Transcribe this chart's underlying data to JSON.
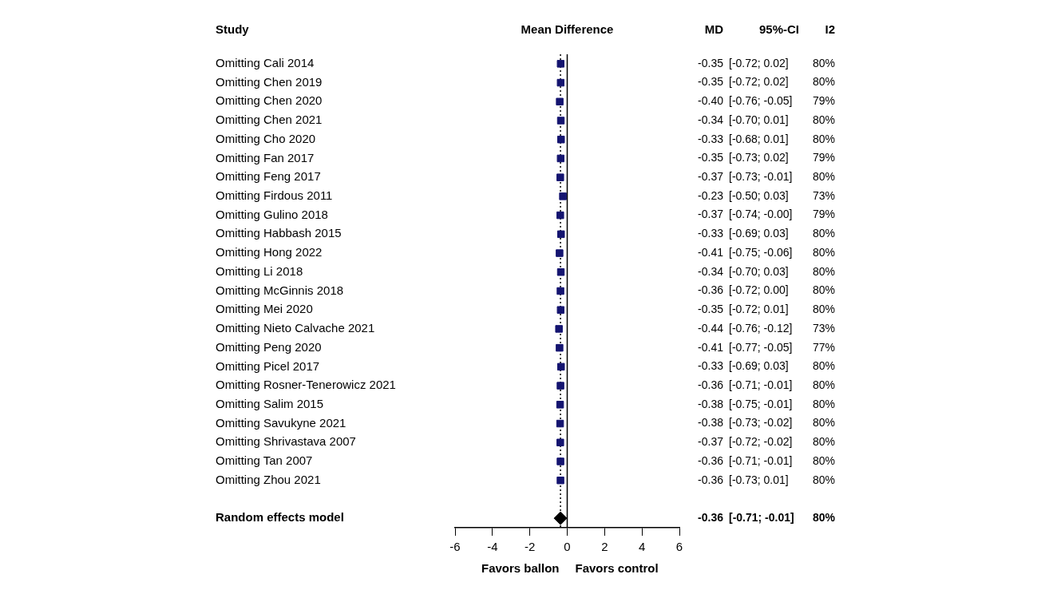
{
  "chart_data": {
    "type": "scatter",
    "orientation": "horizontal",
    "title": "Mean Difference",
    "categories": [
      "Omitting Cali 2014",
      "Omitting Chen 2019",
      "Omitting Chen 2020",
      "Omitting Chen 2021",
      "Omitting Cho 2020",
      "Omitting Fan 2017",
      "Omitting Feng 2017",
      "Omitting Firdous 2011",
      "Omitting Gulino 2018",
      "Omitting Habbash 2015",
      "Omitting Hong 2022",
      "Omitting Li 2018",
      "Omitting McGinnis 2018",
      "Omitting Mei 2020",
      "Omitting Nieto Calvache 2021",
      "Omitting Peng 2020",
      "Omitting Picel 2017",
      "Omitting Rosner-Tenerowicz 2021",
      "Omitting Salim 2015",
      "Omitting Savukyne 2021",
      "Omitting Shrivastava 2007",
      "Omitting Tan 2007",
      "Omitting Zhou 2021",
      null,
      "Random effects model"
    ],
    "series": [
      {
        "color": "#141470",
        "marker": "square",
        "values": [
          -0.35,
          -0.35,
          -0.4,
          -0.34,
          -0.33,
          -0.35,
          -0.37,
          -0.23,
          -0.37,
          -0.33,
          -0.41,
          -0.34,
          -0.36,
          -0.35,
          -0.44,
          -0.41,
          -0.33,
          -0.36,
          -0.38,
          -0.38,
          -0.37,
          -0.36,
          -0.36,
          null,
          null
        ],
        "value_labels": [
          "-0.35 [-0.72; 0.02] 80%",
          "-0.35 [-0.72; 0.02] 80%",
          "-0.40 [-0.76; -0.05] 79%",
          "-0.34 [-0.70; 0.01] 80%",
          "-0.33 [-0.68; 0.01] 80%",
          "-0.35 [-0.73; 0.02] 79%",
          "-0.37 [-0.73; -0.01] 80%",
          "-0.23 [-0.50; 0.03] 73%",
          "-0.37 [-0.74; -0.00] 79%",
          "-0.33 [-0.69; 0.03] 80%",
          "-0.41 [-0.75; -0.06] 80%",
          "-0.34 [-0.70; 0.03] 80%",
          "-0.36 [-0.72; 0.00] 80%",
          "-0.35 [-0.72; 0.01] 80%",
          "-0.44 [-0.76; -0.12] 73%",
          "-0.41 [-0.77; -0.05] 77%",
          "-0.33 [-0.69; 0.03] 80%",
          "-0.36 [-0.71; -0.01] 80%",
          "-0.38 [-0.75; -0.01] 80%",
          "-0.38 [-0.73; -0.02] 80%",
          "-0.37 [-0.72; -0.02] 80%",
          "-0.36 [-0.71; -0.01] 80%",
          "-0.36 [-0.73; 0.01] 80%",
          null,
          null
        ]
      },
      {
        "color": "#000000",
        "marker": "diamond",
        "values": [
          null,
          null,
          null,
          null,
          null,
          null,
          null,
          null,
          null,
          null,
          null,
          null,
          null,
          null,
          null,
          null,
          null,
          null,
          null,
          null,
          null,
          null,
          null,
          null,
          -0.36
        ],
        "value_labels": [
          null,
          null,
          null,
          null,
          null,
          null,
          null,
          null,
          null,
          null,
          null,
          null,
          null,
          null,
          null,
          null,
          null,
          null,
          null,
          null,
          null,
          null,
          null,
          null,
          "-0.36 [-0.71; -0.01] 80%"
        ]
      }
    ],
    "xlim": [
      -6,
      6
    ],
    "xticks": [
      -6,
      -4,
      -2,
      0,
      2,
      4,
      6
    ],
    "ref_lines": [
      {
        "axis": "x",
        "value": 0,
        "color": "#000000",
        "line_style": "solid"
      },
      {
        "axis": "x",
        "value": -0.36,
        "color": "#000000",
        "line_style": "dotted"
      }
    ],
    "annotations": [
      "Study",
      "MD",
      "95%-CI",
      "I2",
      "Favors ballon",
      "Favors control"
    ],
    "legend": false,
    "grid": false
  }
}
